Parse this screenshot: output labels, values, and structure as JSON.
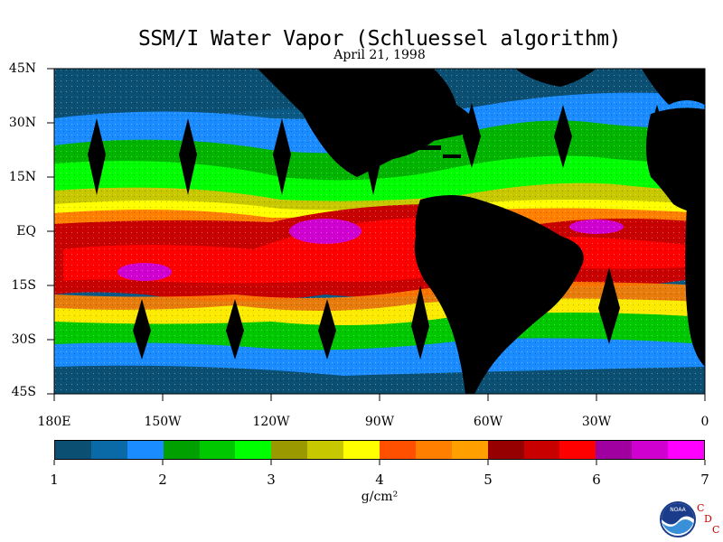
{
  "header": {
    "title": "SSM/I Water Vapor (Schluessel algorithm)",
    "date": "April 21, 1998"
  },
  "map": {
    "lat_labels": [
      "45N",
      "30N",
      "15N",
      "EQ",
      "15S",
      "30S",
      "45S"
    ],
    "lon_labels": [
      "180E",
      "150W",
      "120W",
      "90W",
      "60W",
      "30W",
      "0"
    ]
  },
  "colorbar": {
    "colors": [
      "#0b4f73",
      "#0a6aa8",
      "#1a8cff",
      "#00a000",
      "#00c800",
      "#00ff00",
      "#9a9a00",
      "#c8c800",
      "#ffff00",
      "#ff5000",
      "#ff8000",
      "#ffa000",
      "#960000",
      "#c80000",
      "#ff0000",
      "#a000a0",
      "#d000d0",
      "#ff00ff"
    ],
    "tick_labels": [
      "1",
      "2",
      "3",
      "4",
      "5",
      "6",
      "7"
    ],
    "units": "g/cm²"
  },
  "logo": {
    "icon": "noaa-logo",
    "text": "NOAA",
    "cdc_letters": [
      "C",
      "D",
      "C"
    ]
  }
}
